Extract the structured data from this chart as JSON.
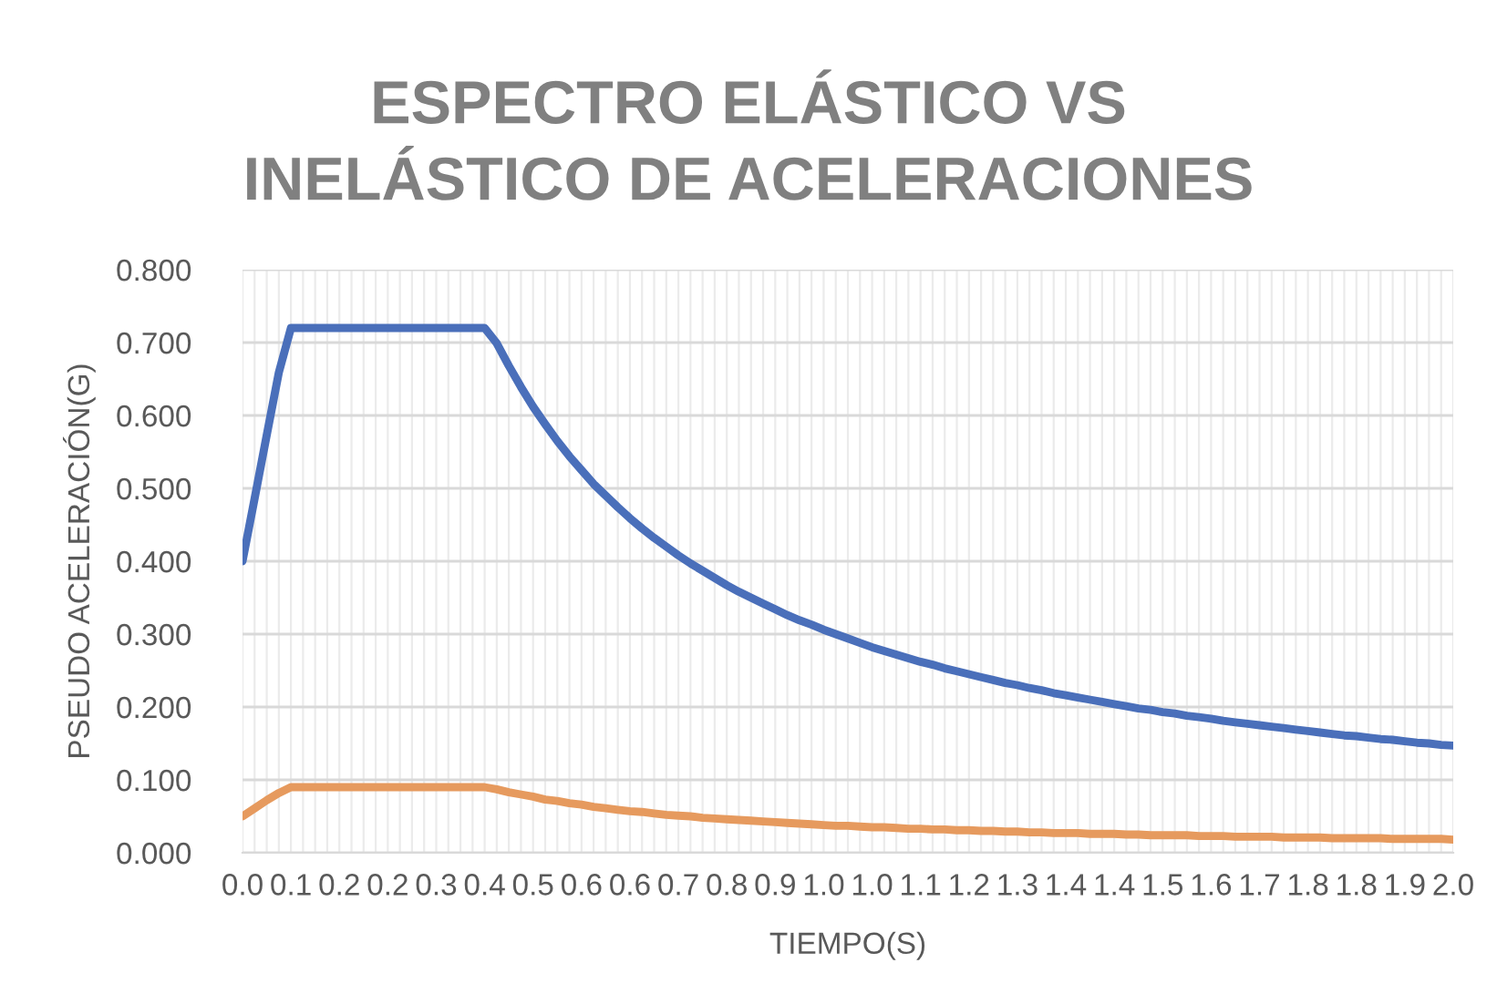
{
  "chart_data": {
    "type": "line",
    "title": "ESPECTRO ELÁSTICO VS\nINELÁSTICO DE ACELERACIONES",
    "xlabel": "TIEMPO(S)",
    "ylabel": "PSEUDO ACELERACIÓN(G)",
    "categories": [
      "0.0",
      null,
      null,
      null,
      "0.1",
      null,
      null,
      null,
      "0.2",
      null,
      null,
      null,
      "0.2",
      null,
      null,
      null,
      "0.3",
      null,
      null,
      null,
      "0.4",
      null,
      null,
      null,
      "0.5",
      null,
      null,
      null,
      "0.6",
      null,
      null,
      null,
      "0.6",
      null,
      null,
      null,
      "0.7",
      null,
      null,
      null,
      "0.8",
      null,
      null,
      null,
      "0.9",
      null,
      null,
      null,
      "1.0",
      null,
      null,
      null,
      "1.0",
      null,
      null,
      null,
      "1.1",
      null,
      null,
      null,
      "1.2",
      null,
      null,
      null,
      "1.3",
      null,
      null,
      null,
      "1.4",
      null,
      null,
      null,
      "1.4",
      null,
      null,
      null,
      "1.5",
      null,
      null,
      null,
      "1.6",
      null,
      null,
      null,
      "1.7",
      null,
      null,
      null,
      "1.8",
      null,
      null,
      null,
      "1.8",
      null,
      null,
      null,
      "1.9",
      null,
      null,
      null,
      "2.0"
    ],
    "series": [
      {
        "color": "#4a6fba",
        "values": [
          0.4,
          0.486,
          0.573,
          0.659,
          0.72,
          0.72,
          0.72,
          0.72,
          0.72,
          0.72,
          0.72,
          0.72,
          0.72,
          0.72,
          0.72,
          0.72,
          0.72,
          0.72,
          0.72,
          0.72,
          0.72,
          0.699,
          0.668,
          0.639,
          0.612,
          0.588,
          0.565,
          0.544,
          0.525,
          0.506,
          0.49,
          0.474,
          0.459,
          0.445,
          0.432,
          0.42,
          0.408,
          0.397,
          0.387,
          0.377,
          0.367,
          0.358,
          0.35,
          0.342,
          0.334,
          0.326,
          0.319,
          0.313,
          0.306,
          0.3,
          0.294,
          0.288,
          0.282,
          0.277,
          0.272,
          0.267,
          0.262,
          0.258,
          0.253,
          0.249,
          0.245,
          0.241,
          0.237,
          0.233,
          0.23,
          0.226,
          0.223,
          0.219,
          0.216,
          0.213,
          0.21,
          0.207,
          0.204,
          0.201,
          0.198,
          0.196,
          0.193,
          0.191,
          0.188,
          0.186,
          0.184,
          0.181,
          0.179,
          0.177,
          0.175,
          0.173,
          0.171,
          0.169,
          0.167,
          0.165,
          0.163,
          0.161,
          0.16,
          0.158,
          0.156,
          0.155,
          0.153,
          0.151,
          0.15,
          0.148,
          0.147
        ]
      },
      {
        "color": "#e69a5e",
        "values": [
          0.05,
          0.061,
          0.072,
          0.082,
          0.09,
          0.09,
          0.09,
          0.09,
          0.09,
          0.09,
          0.09,
          0.09,
          0.09,
          0.09,
          0.09,
          0.09,
          0.09,
          0.09,
          0.09,
          0.09,
          0.09,
          0.087,
          0.083,
          0.08,
          0.077,
          0.073,
          0.071,
          0.068,
          0.066,
          0.063,
          0.061,
          0.059,
          0.057,
          0.056,
          0.054,
          0.052,
          0.051,
          0.05,
          0.048,
          0.047,
          0.046,
          0.045,
          0.044,
          0.043,
          0.042,
          0.041,
          0.04,
          0.039,
          0.038,
          0.037,
          0.037,
          0.036,
          0.035,
          0.035,
          0.034,
          0.033,
          0.033,
          0.032,
          0.032,
          0.031,
          0.031,
          0.03,
          0.03,
          0.029,
          0.029,
          0.028,
          0.028,
          0.027,
          0.027,
          0.027,
          0.026,
          0.026,
          0.026,
          0.025,
          0.025,
          0.024,
          0.024,
          0.024,
          0.024,
          0.023,
          0.023,
          0.023,
          0.022,
          0.022,
          0.022,
          0.022,
          0.021,
          0.021,
          0.021,
          0.021,
          0.02,
          0.02,
          0.02,
          0.02,
          0.02,
          0.019,
          0.019,
          0.019,
          0.019,
          0.019,
          0.018
        ]
      }
    ],
    "ylim": [
      0,
      0.8
    ],
    "yticks": [
      {
        "value": 0,
        "label": "0.000"
      },
      {
        "value": 0.1,
        "label": "0.100"
      },
      {
        "value": 0.2,
        "label": "0.200"
      },
      {
        "value": 0.3,
        "label": "0.300"
      },
      {
        "value": 0.4,
        "label": "0.400"
      },
      {
        "value": 0.5,
        "label": "0.500"
      },
      {
        "value": 0.6,
        "label": "0.600"
      },
      {
        "value": 0.7,
        "label": "0.700"
      },
      {
        "value": 0.8,
        "label": "0.800"
      }
    ],
    "grid": true
  }
}
